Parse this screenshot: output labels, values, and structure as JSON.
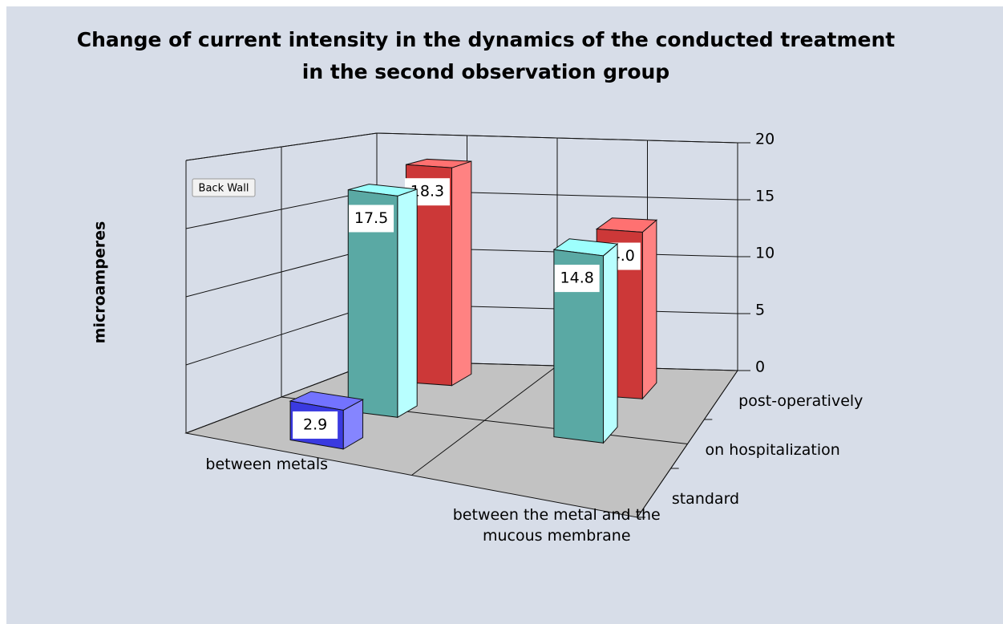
{
  "chart_data": {
    "type": "bar3d",
    "title": "Change of current intensity in the dynamics of the conducted treatment in the second observation group",
    "ylabel": "microamperes",
    "tooltip": "Back Wall",
    "categories": [
      "between metals",
      "between the metal and the mucous membrane"
    ],
    "series": [
      {
        "name": "standard",
        "color": "#3a3ae0",
        "values": [
          2.9,
          null
        ],
        "value_labels": [
          "2.9",
          null
        ]
      },
      {
        "name": "on hospitalization",
        "color": "#5aa9a4",
        "values": [
          17.5,
          14.8
        ],
        "value_labels": [
          "17.5",
          "14.8"
        ]
      },
      {
        "name": "post-operatively",
        "color": "#cc3838",
        "values": [
          18.3,
          14.0
        ],
        "value_labels": [
          "18.3",
          "14.0"
        ]
      }
    ],
    "ylim": [
      0,
      20
    ],
    "yticks": [
      0,
      5,
      10,
      15,
      20
    ],
    "grid": true
  }
}
